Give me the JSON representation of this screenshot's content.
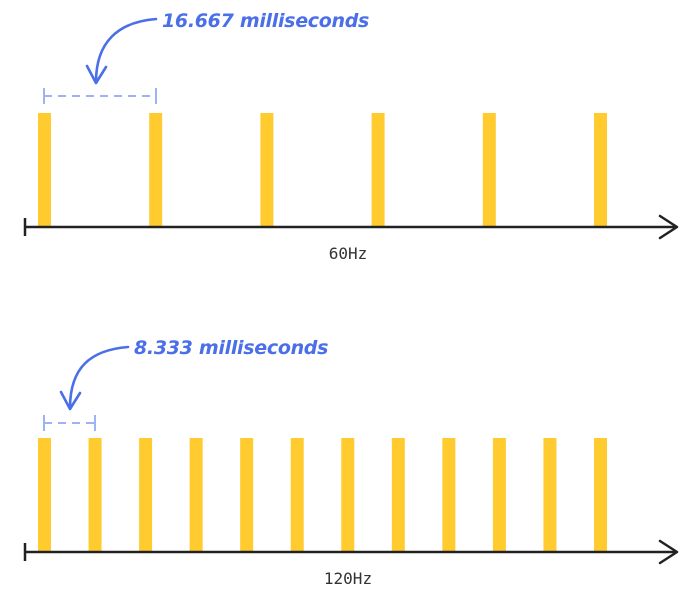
{
  "colors": {
    "frame": "#FFCB2F",
    "accent": "#4A6FE8",
    "accent_light": "#9DB3F4",
    "axis": "#222222",
    "label": "#333333"
  },
  "timelines": [
    {
      "axis_label": "60Hz",
      "interval_label": "16.667 milliseconds",
      "frame_count": 6
    },
    {
      "axis_label": "120Hz",
      "interval_label": "8.333 milliseconds",
      "frame_count": 12
    }
  ]
}
